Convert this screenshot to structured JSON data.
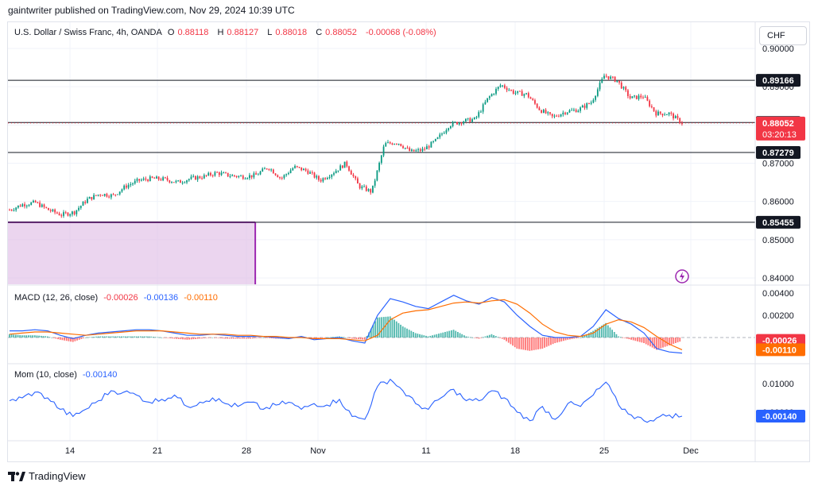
{
  "header": {
    "published": "gaintwriter published on TradingView.com, Nov 29, 2024 10:39 UTC"
  },
  "currency_button": "CHF",
  "legend": {
    "title": "U.S. Dollar / Swiss Franc, 4h, OANDA",
    "o_label": "O",
    "o": "0.88118",
    "h_label": "H",
    "h": "0.88127",
    "l_label": "L",
    "l": "0.88018",
    "c_label": "C",
    "c": "0.88052",
    "change": "-0.00068 (-0.08%)",
    "macd_title": "MACD (12, 26, close)",
    "macd_hist": "-0.00026",
    "macd_line": "-0.00136",
    "macd_signal": "-0.00110",
    "mom_title": "Mom (10, close)",
    "mom_value": "-0.00140"
  },
  "price_axis": {
    "ticks": [
      "0.90000",
      "0.89000",
      "0.88000",
      "0.87000",
      "0.86000",
      "0.85000",
      "0.84000"
    ],
    "badges": [
      {
        "value": "0.89166",
        "kind": "level"
      },
      {
        "value": "0.88064",
        "kind": "level"
      },
      {
        "value": "0.88052",
        "kind": "current",
        "countdown": "03:20:13"
      },
      {
        "value": "0.87279",
        "kind": "level"
      },
      {
        "value": "0.85455",
        "kind": "level"
      }
    ]
  },
  "macd_axis": {
    "ticks": [
      "0.00400",
      "0.00200"
    ],
    "badges": [
      {
        "value": "-0.00026",
        "color": "#f23645"
      },
      {
        "value": "-0.00110",
        "color": "#ff6d00"
      }
    ]
  },
  "mom_axis": {
    "ticks": [
      "0.01000",
      "0.00000"
    ],
    "badges": [
      {
        "value": "-0.00140",
        "color": "#2962ff"
      }
    ]
  },
  "time_axis": {
    "labels": [
      "14",
      "21",
      "28",
      "Nov",
      "11",
      "18",
      "25",
      "Dec"
    ]
  },
  "footer": {
    "brand": "TradingView"
  },
  "colors": {
    "up": "#089981",
    "down": "#f23645",
    "macd": "#2962ff",
    "signal": "#ff6d00",
    "mom": "#2962ff",
    "zone_fill": "#e1bee7",
    "zone_border": "#9c27b0"
  },
  "chart_data": [
    {
      "type": "candlestick",
      "title": "U.S. Dollar / Swiss Franc, 4h, OANDA",
      "ylim": [
        0.8385,
        0.9015
      ],
      "x_range": [
        "Oct 8",
        "Nov 29"
      ],
      "horizontal_levels": [
        0.89166,
        0.88064,
        0.87279,
        0.85455
      ],
      "current_price": 0.88052,
      "zone": {
        "x_start": "Oct 8",
        "x_end": "Oct 27",
        "y_top": 0.85455,
        "y_bottom": 0.8385,
        "color": "#e1bee7"
      },
      "series": [
        {
          "name": "close",
          "points": [
            [
              "Oct 8",
              0.8578
            ],
            [
              "Oct 9",
              0.8592
            ],
            [
              "Oct 10",
              0.8597
            ],
            [
              "Oct 11",
              0.8578
            ],
            [
              "Oct 12",
              0.8565
            ],
            [
              "Oct 13",
              0.8572
            ],
            [
              "Oct 14",
              0.8605
            ],
            [
              "Oct 15",
              0.862
            ],
            [
              "Oct 16",
              0.8615
            ],
            [
              "Oct 17",
              0.864
            ],
            [
              "Oct 18",
              0.8655
            ],
            [
              "Oct 19",
              0.866
            ],
            [
              "Oct 20",
              0.8658
            ],
            [
              "Oct 21",
              0.865
            ],
            [
              "Oct 22",
              0.866
            ],
            [
              "Oct 23",
              0.8665
            ],
            [
              "Oct 24",
              0.8675
            ],
            [
              "Oct 25",
              0.8668
            ],
            [
              "Oct 26",
              0.8665
            ],
            [
              "Oct 27",
              0.8668
            ],
            [
              "Oct 28",
              0.869
            ],
            [
              "Oct 29",
              0.866
            ],
            [
              "Oct 30",
              0.869
            ],
            [
              "Oct 31",
              0.868
            ],
            [
              "Nov 1",
              0.8655
            ],
            [
              "Nov 2",
              0.8675
            ],
            [
              "Nov 3",
              0.87
            ],
            [
              "Nov 4",
              0.864
            ],
            [
              "Nov 5",
              0.8625
            ],
            [
              "Nov 6",
              0.875
            ],
            [
              "Nov 7",
              0.8755
            ],
            [
              "Nov 8",
              0.873
            ],
            [
              "Nov 9",
              0.8735
            ],
            [
              "Nov 10",
              0.876
            ],
            [
              "Nov 11",
              0.88
            ],
            [
              "Nov 12",
              0.881
            ],
            [
              "Nov 13",
              0.8815
            ],
            [
              "Nov 14",
              0.887
            ],
            [
              "Nov 15",
              0.8905
            ],
            [
              "Nov 16",
              0.8885
            ],
            [
              "Nov 17",
              0.888
            ],
            [
              "Nov 18",
              0.884
            ],
            [
              "Nov 19",
              0.882
            ],
            [
              "Nov 20",
              0.8835
            ],
            [
              "Nov 21",
              0.884
            ],
            [
              "Nov 22",
              0.886
            ],
            [
              "Nov 23",
              0.893
            ],
            [
              "Nov 24",
              0.8915
            ],
            [
              "Nov 25",
              0.887
            ],
            [
              "Nov 26",
              0.8875
            ],
            [
              "Nov 27",
              0.883
            ],
            [
              "Nov 28",
              0.883
            ],
            [
              "Nov 29",
              0.88052
            ]
          ]
        }
      ]
    },
    {
      "type": "line",
      "title": "MACD (12, 26, close)",
      "ylim": [
        -0.0022,
        0.0041
      ],
      "series": [
        {
          "name": "MACD",
          "color": "#2962ff",
          "values": [
            0.0006,
            0.0006,
            0.0007,
            0.0006,
            0.0002,
            -0.0001,
            0.0002,
            0.0004,
            0.0005,
            0.0006,
            0.0007,
            0.0007,
            0.0006,
            0.0004,
            0.0002,
            0.0002,
            0.0003,
            0.0002,
            0.0001,
            0.0001,
            0.0001,
            0.0,
            -0.0001,
            0.0001,
            -0.0002,
            -0.0001,
            0.0,
            -0.0003,
            -0.0005,
            0.002,
            0.0035,
            0.0032,
            0.0028,
            0.0026,
            0.0032,
            0.0038,
            0.0033,
            0.003,
            0.0036,
            0.0032,
            0.002,
            0.001,
            0.0002,
            0.0,
            0.0,
            0.0001,
            0.001,
            0.0025,
            0.0017,
            0.0012,
            0.0004,
            -0.001,
            -0.0013,
            -0.0014
          ]
        },
        {
          "name": "Signal",
          "color": "#ff6d00",
          "values": [
            0.0003,
            0.0004,
            0.0005,
            0.0005,
            0.0004,
            0.0003,
            0.0002,
            0.0003,
            0.0004,
            0.0005,
            0.0006,
            0.0006,
            0.0006,
            0.0005,
            0.0004,
            0.0003,
            0.0003,
            0.0003,
            0.0002,
            0.0002,
            0.0001,
            0.0001,
            0.0,
            0.0,
            -0.0001,
            -0.0001,
            -0.0001,
            -0.0002,
            -0.0003,
            0.0002,
            0.0016,
            0.0022,
            0.0024,
            0.0025,
            0.0028,
            0.0031,
            0.0032,
            0.0031,
            0.0033,
            0.0034,
            0.003,
            0.0022,
            0.0012,
            0.0005,
            0.0002,
            0.0001,
            0.0004,
            0.0012,
            0.0016,
            0.0014,
            0.0009,
            0.0001,
            -0.0006,
            -0.0011
          ]
        }
      ]
    },
    {
      "type": "line",
      "title": "Mom (10, close)",
      "ylim": [
        -0.0035,
        0.013
      ],
      "series": [
        {
          "name": "Mom",
          "color": "#2962ff",
          "values": [
            0.004,
            0.005,
            0.007,
            0.005,
            0.001,
            -0.0015,
            0.001,
            0.004,
            0.0075,
            0.007,
            0.006,
            0.0035,
            0.0045,
            0.006,
            0.002,
            0.0035,
            0.005,
            0.003,
            0.002,
            0.0035,
            0.001,
            0.0025,
            0.0035,
            0.001,
            0.003,
            0.0025,
            0.0045,
            -0.0015,
            -0.0025,
            0.009,
            0.0115,
            0.0075,
            0.003,
            0.001,
            0.005,
            0.008,
            0.004,
            0.004,
            0.0075,
            0.005,
            0.0,
            -0.003,
            0.002,
            -0.0025,
            0.003,
            0.002,
            0.006,
            0.0105,
            0.0025,
            -0.001,
            -0.003,
            -0.002,
            -0.001,
            -0.0014
          ]
        }
      ]
    }
  ]
}
